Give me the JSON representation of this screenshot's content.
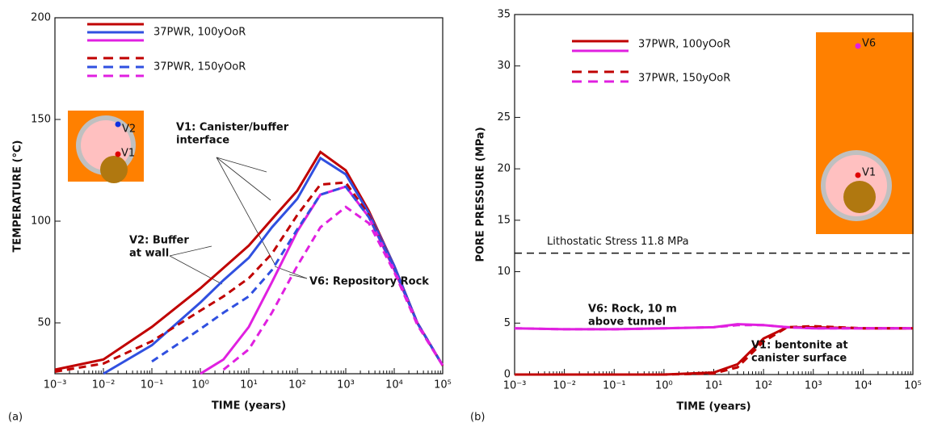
{
  "chart_data": [
    {
      "type": "line",
      "panel_label": "(a)",
      "y_label": "TEMPERATURE (°C)",
      "x_label": "TIME (years)",
      "x_log": true,
      "xlim": [
        0.001,
        100000
      ],
      "xticks": [
        {
          "value": 0.001,
          "label": "10⁻³"
        },
        {
          "value": 0.01,
          "label": "10⁻²"
        },
        {
          "value": 0.1,
          "label": "10⁻¹"
        },
        {
          "value": 1,
          "label": "10⁰"
        },
        {
          "value": 10,
          "label": "10¹"
        },
        {
          "value": 100,
          "label": "10²"
        },
        {
          "value": 1000,
          "label": "10³"
        },
        {
          "value": 10000,
          "label": "10⁴"
        },
        {
          "value": 100000,
          "label": "10⁵"
        }
      ],
      "ylim": [
        25,
        200
      ],
      "yticks": [
        50,
        100,
        150,
        200
      ],
      "x": [
        0.001,
        0.01,
        0.1,
        1,
        3,
        10,
        30,
        100,
        300,
        1000,
        3000,
        10000,
        30000,
        100000
      ],
      "series": [
        {
          "color": "#c00000",
          "dashed": false,
          "values": [
            27,
            32,
            48,
            67,
            77,
            88,
            101,
            115,
            134,
            125,
            105,
            78,
            50,
            29
          ]
        },
        {
          "color": "#3050e0",
          "dashed": false,
          "values": [
            null,
            25,
            39,
            60,
            71,
            82,
            97,
            111,
            131,
            123,
            104,
            78,
            50,
            29
          ]
        },
        {
          "color": "#e020e0",
          "dashed": false,
          "values": [
            null,
            null,
            null,
            25,
            32,
            48,
            70,
            95,
            113,
            117,
            102,
            76,
            50,
            29
          ]
        },
        {
          "color": "#c00000",
          "dashed": true,
          "values": [
            26,
            30,
            41,
            56,
            63,
            72,
            84,
            103,
            118,
            119,
            103,
            77,
            50,
            29
          ]
        },
        {
          "color": "#3050e0",
          "dashed": true,
          "values": [
            null,
            null,
            31,
            47,
            55,
            63,
            76,
            96,
            113,
            117,
            102,
            77,
            50,
            29
          ]
        },
        {
          "color": "#e020e0",
          "dashed": true,
          "values": [
            null,
            null,
            null,
            null,
            27,
            37,
            55,
            78,
            97,
            107,
            99,
            75,
            49,
            29
          ]
        }
      ],
      "legend": [
        {
          "label": "37PWR, 100yOoR",
          "dashed": false,
          "colors": [
            "#c00000",
            "#3050e0",
            "#e020e0"
          ]
        },
        {
          "label": "37PWR, 150yOoR",
          "dashed": true,
          "colors": [
            "#c00000",
            "#3050e0",
            "#e020e0"
          ]
        }
      ],
      "annotations": [
        {
          "lines": [
            "V1: Canister/buffer",
            "interface"
          ],
          "color": "#c00000"
        },
        {
          "lines": [
            "V2: Buffer",
            "at wall"
          ],
          "color": "#3050e0"
        },
        {
          "lines": [
            "V6: Repository Rock"
          ],
          "color": "#e020e0"
        }
      ],
      "inset_labels": [
        "V2",
        "V1"
      ]
    },
    {
      "type": "line",
      "panel_label": "(b)",
      "y_label": "PORE PRESSURE (MPa)",
      "x_label": "TIME (years)",
      "x_log": true,
      "xlim": [
        0.001,
        100000
      ],
      "xticks": [
        {
          "value": 0.001,
          "label": "10⁻³"
        },
        {
          "value": 0.01,
          "label": "10⁻²"
        },
        {
          "value": 0.1,
          "label": "10⁻¹"
        },
        {
          "value": 1,
          "label": "10⁰"
        },
        {
          "value": 10,
          "label": "10¹"
        },
        {
          "value": 100,
          "label": "10²"
        },
        {
          "value": 1000,
          "label": "10³"
        },
        {
          "value": 10000,
          "label": "10⁴"
        },
        {
          "value": 100000,
          "label": "10⁵"
        }
      ],
      "ylim": [
        0,
        35
      ],
      "yticks": [
        0,
        5,
        10,
        15,
        20,
        25,
        30,
        35
      ],
      "x": [
        0.001,
        0.01,
        0.1,
        1,
        10,
        30,
        100,
        300,
        1000,
        10000,
        100000
      ],
      "series": [
        {
          "color": "#c00000",
          "dashed": false,
          "values": [
            0,
            0,
            0,
            0,
            0.2,
            1.0,
            3.5,
            4.6,
            4.6,
            4.5,
            4.5
          ]
        },
        {
          "color": "#e020e0",
          "dashed": false,
          "values": [
            4.5,
            4.4,
            4.4,
            4.5,
            4.6,
            4.9,
            4.8,
            4.6,
            4.5,
            4.5,
            4.5
          ]
        },
        {
          "color": "#c00000",
          "dashed": true,
          "values": [
            0,
            0,
            0,
            0,
            0.1,
            0.7,
            3.2,
            4.6,
            4.7,
            4.5,
            4.5
          ]
        },
        {
          "color": "#e020e0",
          "dashed": true,
          "values": [
            4.5,
            4.4,
            4.4,
            4.5,
            4.6,
            4.8,
            4.8,
            4.6,
            4.5,
            4.5,
            4.5
          ]
        }
      ],
      "legend": [
        {
          "label": "37PWR, 100yOoR",
          "dashed": false,
          "colors": [
            "#c00000",
            "#e020e0"
          ]
        },
        {
          "label": "37PWR, 150yOoR",
          "dashed": true,
          "colors": [
            "#c00000",
            "#e020e0"
          ]
        }
      ],
      "reference_lines": [
        {
          "value": 11.8,
          "label": "Lithostatic Stress 11.8 MPa"
        }
      ],
      "annotations": [
        {
          "lines": [
            "V6: Rock, 10 m",
            "above tunnel"
          ],
          "color": "#111111"
        },
        {
          "lines": [
            "V1: bentonite at",
            "canister surface"
          ],
          "color": "#111111"
        }
      ],
      "inset_labels": [
        "V6",
        "V1"
      ]
    }
  ]
}
